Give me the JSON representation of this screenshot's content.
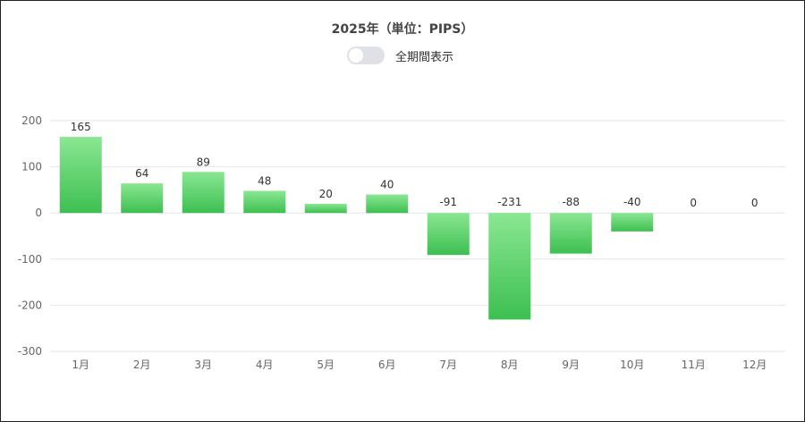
{
  "chart_data": {
    "type": "bar",
    "title": "2025年（単位：PIPS）",
    "categories": [
      "1月",
      "2月",
      "3月",
      "4月",
      "5月",
      "6月",
      "7月",
      "8月",
      "9月",
      "10月",
      "11月",
      "12月"
    ],
    "values": [
      165,
      64,
      89,
      48,
      20,
      40,
      -91,
      -231,
      -88,
      -40,
      0,
      0
    ],
    "ylim": [
      -300,
      200
    ],
    "yticks": [
      200,
      100,
      0,
      -100,
      -200,
      -300
    ],
    "xlabel": "",
    "ylabel": "",
    "grid": true,
    "colors": {
      "bar_light": "#8ae792",
      "bar_dark": "#3ebf51",
      "grid": "#e3e6f0",
      "text": "#666666"
    }
  },
  "toggle": {
    "label": "全期間表示",
    "on": false
  }
}
